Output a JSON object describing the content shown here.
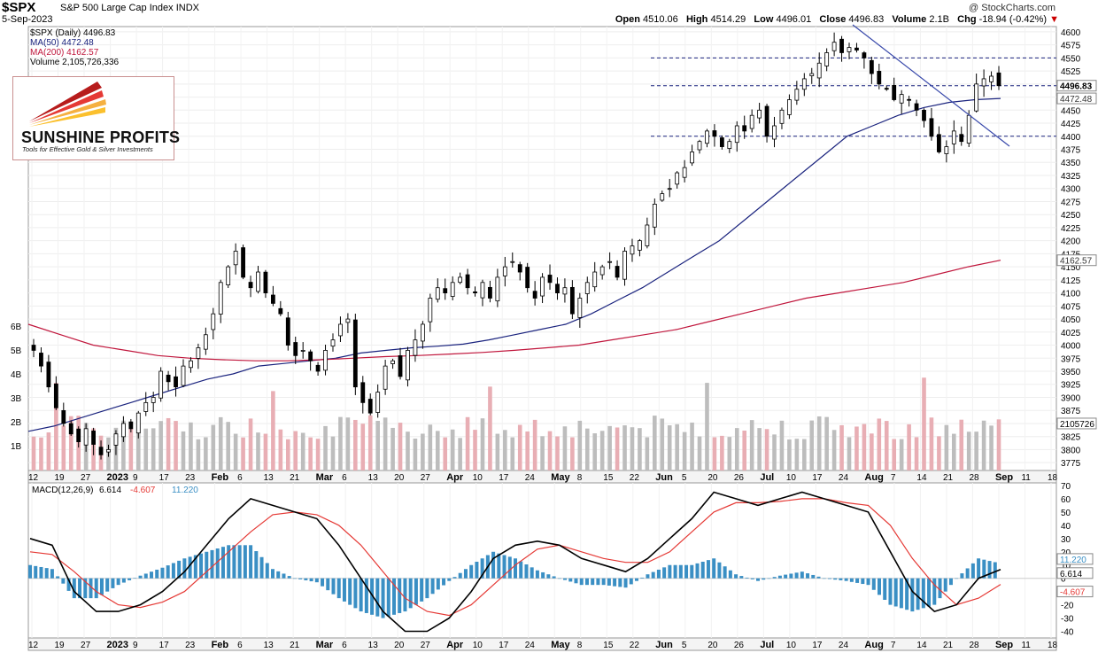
{
  "header": {
    "symbol": "$SPX",
    "name": "S&P 500 Large Cap Index",
    "exchange": "INDX",
    "date": "5-Sep-2023",
    "credit": "@ StockCharts.com",
    "open_label": "Open",
    "open": "4510.06",
    "high_label": "High",
    "high": "4514.29",
    "low_label": "Low",
    "low": "4496.01",
    "close_label": "Close",
    "close": "4496.83",
    "volume_label": "Volume",
    "volume": "2.1B",
    "chg_label": "Chg",
    "chg": "-18.94 (-0.42%)"
  },
  "legend": {
    "price": "$SPX (Daily) 4496.83",
    "ma50": "MA(50) 4472.48",
    "ma200": "MA(200) 4162.57",
    "volume": "Volume 2,105,726,336"
  },
  "logo": {
    "name": "SUNSHINE PROFITS",
    "tagline": "Tools for Effective Gold & Silver Investments"
  },
  "macd_legend": {
    "label": "MACD(12,26,9)",
    "macd": "6.614",
    "signal": "-4.607",
    "hist": "11.220"
  },
  "colors": {
    "up": "#000000",
    "down": "#000000",
    "ma50": "#1a237e",
    "ma200": "#c0163c",
    "vol_up": "#bdbdbd",
    "vol_down": "#e8aeb4",
    "macd": "#000000",
    "signal": "#e53935",
    "hist": "#3a8fc4",
    "trend": "#3949ab",
    "neg_change": "#cc0000"
  },
  "chart_data": [
    {
      "type": "candlestick",
      "title": "$SPX S&P 500 Large Cap Index INDX",
      "x_tick_labels": [
        "12",
        "19",
        "27",
        "2023",
        "9",
        "17",
        "23",
        "Feb",
        "6",
        "13",
        "21",
        "Mar",
        "6",
        "13",
        "20",
        "27",
        "Apr",
        "10",
        "17",
        "24",
        "May",
        "8",
        "15",
        "22",
        "Jun",
        "5",
        "20",
        "26",
        "Jul",
        "10",
        "17",
        "24",
        "Aug",
        "7",
        "14",
        "21",
        "28",
        "Sep",
        "11",
        "18"
      ],
      "y_tick_labels": [
        "4600",
        "4575",
        "4550",
        "4525",
        "4500",
        "4475",
        "4450",
        "4425",
        "4400",
        "4375",
        "4350",
        "4325",
        "4300",
        "4275",
        "4250",
        "4225",
        "4200",
        "4175",
        "4150",
        "4125",
        "4100",
        "4075",
        "4050",
        "4025",
        "4000",
        "3975",
        "3950",
        "3925",
        "3900",
        "3875",
        "3850",
        "3825",
        "3800",
        "3775"
      ],
      "ylim": [
        3760,
        4610
      ],
      "horizontal_lines": [
        4550,
        4496.83,
        4400
      ],
      "price_labels": {
        "close": "4496.83",
        "ma50": "4472.48",
        "ma200": "4162.57"
      },
      "close_series": [
        3990,
        3960,
        3920,
        3880,
        3850,
        3830,
        3815,
        3840,
        3810,
        3790,
        3800,
        3830,
        3850,
        3840,
        3870,
        3890,
        3900,
        3950,
        3930,
        3920,
        3960,
        3970,
        3995,
        4020,
        4060,
        4120,
        4150,
        4180,
        4130,
        4110,
        4140,
        4100,
        4080,
        4060,
        4000,
        3980,
        3990,
        3970,
        3950,
        3990,
        4010,
        4040,
        4050,
        3920,
        3890,
        3870,
        3910,
        3960,
        3970,
        3940,
        3990,
        4010,
        4040,
        4090,
        4110,
        4100,
        4120,
        4130,
        4110,
        4100,
        4120,
        4090,
        4130,
        4150,
        4160,
        4140,
        4110,
        4090,
        4130,
        4120,
        4100,
        4110,
        4060,
        4090,
        4120,
        4140,
        4150,
        4160,
        4130,
        4180,
        4190,
        4200,
        4230,
        4270,
        4290,
        4300,
        4330,
        4340,
        4370,
        4390,
        4410,
        4400,
        4380,
        4390,
        4420,
        4410,
        4440,
        4450,
        4400,
        4420,
        4450,
        4470,
        4490,
        4510,
        4520,
        4540,
        4560,
        4580,
        4560,
        4570,
        4565,
        4550,
        4520,
        4500,
        4490,
        4470,
        4480,
        4470,
        4450,
        4430,
        4400,
        4370,
        4380,
        4410,
        4390,
        4440,
        4500,
        4510,
        4515,
        4496.83
      ],
      "ma50": [
        3835,
        3845,
        3860,
        3875,
        3890,
        3905,
        3920,
        3935,
        3945,
        3960,
        3965,
        3970,
        3975,
        3985,
        3990,
        3995,
        3998,
        4002,
        4010,
        4020,
        4030,
        4040,
        4060,
        4085,
        4110,
        4140,
        4170,
        4200,
        4240,
        4280,
        4320,
        4360,
        4400,
        4420,
        4440,
        4455,
        4465,
        4470,
        4472.48
      ],
      "ma200": [
        4040,
        4020,
        4000,
        3990,
        3980,
        3975,
        3972,
        3970,
        3970,
        3972,
        3975,
        3978,
        3980,
        3983,
        3986,
        3990,
        3995,
        4000,
        4010,
        4020,
        4030,
        4045,
        4060,
        4075,
        4090,
        4100,
        4110,
        4120,
        4135,
        4150,
        4162.57
      ],
      "volume_axis_labels": [
        "6B",
        "5B",
        "4B",
        "3B",
        "2B",
        "1B"
      ],
      "volume_label": "2105726"
    },
    {
      "type": "line",
      "title": "MACD(12,26,9)",
      "y_tick_labels": [
        "70",
        "60",
        "50",
        "40",
        "30",
        "20",
        "10",
        "0",
        "-10",
        "-20",
        "-30",
        "-40"
      ],
      "ylim": [
        -45,
        72
      ],
      "series": [
        {
          "name": "MACD",
          "values": [
            30,
            25,
            -10,
            -25,
            -25,
            -20,
            -10,
            5,
            25,
            45,
            60,
            55,
            50,
            45,
            25,
            0,
            -25,
            -40,
            -40,
            -30,
            -10,
            15,
            25,
            28,
            25,
            15,
            10,
            5,
            15,
            30,
            45,
            65,
            60,
            55,
            60,
            65,
            60,
            55,
            50,
            20,
            -10,
            -25,
            -20,
            0,
            6.614
          ]
        },
        {
          "name": "Signal",
          "values": [
            20,
            18,
            5,
            -10,
            -20,
            -22,
            -18,
            -10,
            5,
            20,
            35,
            48,
            50,
            48,
            40,
            25,
            5,
            -15,
            -25,
            -28,
            -20,
            -5,
            10,
            22,
            25,
            20,
            15,
            12,
            12,
            20,
            35,
            50,
            57,
            57,
            58,
            60,
            60,
            57,
            55,
            40,
            15,
            -5,
            -20,
            -15,
            -4.607
          ]
        },
        {
          "name": "Histogram",
          "values": [
            10,
            7,
            -15,
            -15,
            -5,
            2,
            8,
            15,
            20,
            25,
            25,
            7,
            0,
            -3,
            -15,
            -25,
            -30,
            -25,
            -15,
            -2,
            10,
            20,
            15,
            6,
            0,
            -5,
            -5,
            -7,
            3,
            10,
            10,
            15,
            3,
            -2,
            2,
            5,
            0,
            -2,
            -5,
            -20,
            -25,
            -20,
            0,
            15,
            11.22
          ]
        }
      ]
    }
  ]
}
